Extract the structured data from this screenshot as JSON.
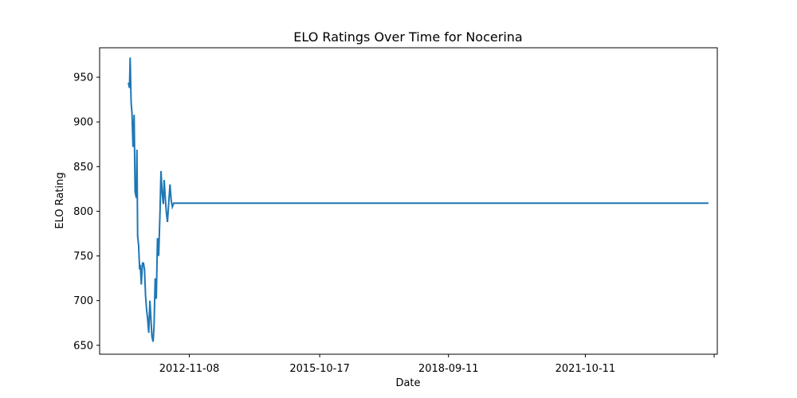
{
  "chart_data": {
    "type": "line",
    "title": "ELO Ratings Over Time for Nocerina",
    "xlabel": "Date",
    "ylabel": "ELO Rating",
    "xlim": [
      "2010-11-01",
      "2024-10-01"
    ],
    "ylim": [
      640,
      983
    ],
    "x_tick_labels": [
      "2012-11-08",
      "2015-10-17",
      "2018-09-11",
      "2021-10-11",
      ""
    ],
    "x_tick_values": [
      "2012-11-08",
      "2015-10-17",
      "2018-09-11",
      "2021-10-11",
      "2024-09-05"
    ],
    "y_ticks": [
      650,
      700,
      750,
      800,
      850,
      900,
      950
    ],
    "grid": false,
    "legend": "none",
    "colors": {
      "series": "#1f77b4"
    },
    "series": [
      {
        "x": [
          "2011-06-26",
          "2011-07-05",
          "2011-07-10",
          "2011-07-18",
          "2011-07-25",
          "2011-08-03",
          "2011-08-12",
          "2011-08-20",
          "2011-08-30",
          "2011-09-04",
          "2011-09-10",
          "2011-09-18",
          "2011-09-26",
          "2011-10-02",
          "2011-10-10",
          "2011-10-20",
          "2011-10-28",
          "2011-11-05",
          "2011-11-14",
          "2011-11-22",
          "2011-12-01",
          "2011-12-10",
          "2011-12-20",
          "2012-01-05",
          "2012-01-15",
          "2012-01-23",
          "2012-02-01",
          "2012-02-10",
          "2012-02-20",
          "2012-03-01",
          "2012-03-12",
          "2012-03-20",
          "2012-03-30",
          "2012-04-08",
          "2012-04-15",
          "2012-04-22",
          "2012-05-02",
          "2012-05-12",
          "2012-05-22",
          "2012-06-02",
          "2012-06-12",
          "2012-06-22",
          "2012-07-02",
          "2012-07-15",
          "2012-07-22",
          "2012-07-30",
          "2012-08-05",
          "2012-08-12",
          "2012-08-20",
          "2012-08-26",
          "2012-09-02",
          "2024-07-20"
        ],
        "y": [
          944,
          938,
          972,
          922,
          910,
          872,
          908,
          822,
          815,
          869,
          772,
          762,
          735,
          740,
          718,
          742,
          742,
          735,
          706,
          690,
          680,
          664,
          700,
          660,
          654,
          672,
          725,
          702,
          770,
          750,
          800,
          845,
          820,
          808,
          835,
          820,
          800,
          788,
          808,
          830,
          812,
          805,
          809,
          809,
          809,
          809,
          809,
          809,
          809,
          809,
          809,
          809
        ]
      }
    ]
  }
}
